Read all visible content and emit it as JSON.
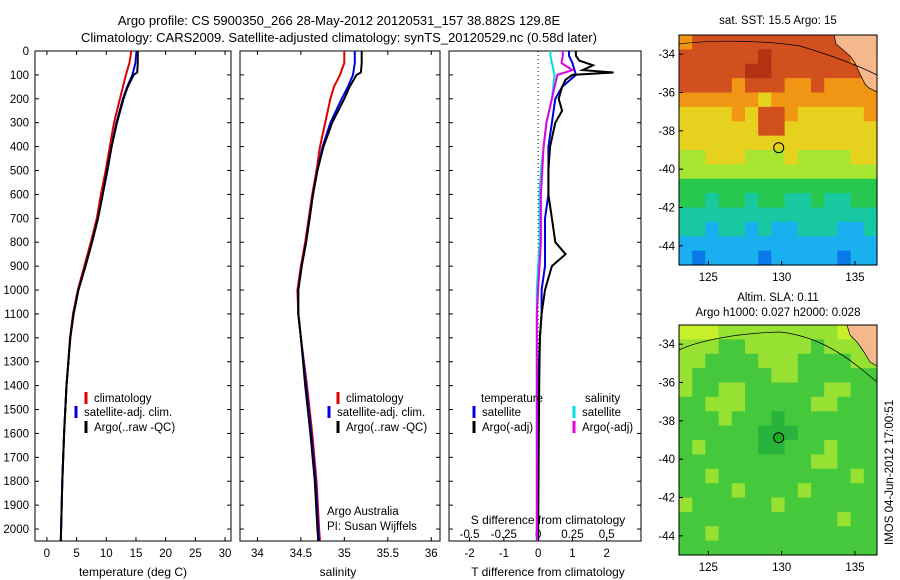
{
  "title_line1": "Argo profile: CS 5900350_266 28-May-2012 20120531_157 38.882S 129.8E",
  "title_line2": "Climatology: CARS2009. Satellite-adjusted climatology: synTS_20120529.nc (0.58d later)",
  "credit_line1": "Argo Australia",
  "credit_line2": "PI: Susan Wijffels",
  "stamp": "IMOS 04-Jun-2012 17:00:51",
  "colors": {
    "climatology": "#e00000",
    "satellite": "#0000e0",
    "argo": "#000000",
    "salinity_satellite": "#00e0e0",
    "salinity_argo": "#e000e0"
  },
  "chart_data": [
    {
      "type": "line",
      "xlabel": "temperature (deg C)",
      "ylabel": "",
      "xlim": [
        -2,
        31
      ],
      "ylim": [
        2050,
        0
      ],
      "xticks": [
        "0",
        "5",
        "10",
        "15",
        "20",
        "25",
        "30"
      ],
      "yticks": [
        "0",
        "100",
        "200",
        "300",
        "400",
        "500",
        "600",
        "700",
        "800",
        "900",
        "1000",
        "1100",
        "1200",
        "1300",
        "1400",
        "1500",
        "1600",
        "1700",
        "1800",
        "1900",
        "2000"
      ],
      "legend": [
        "climatology",
        "satellite-adj. clim.",
        "Argo(..raw -QC)"
      ],
      "legend_position": "lower-center",
      "series": [
        {
          "name": "climatology",
          "y": [
            0,
            20,
            50,
            100,
            150,
            200,
            300,
            400,
            500,
            600,
            700,
            800,
            900,
            1000,
            1100,
            1200,
            1400,
            1600,
            1800,
            2000,
            2050
          ],
          "x": [
            14.2,
            14.1,
            13.9,
            13.3,
            12.8,
            12.3,
            11.3,
            10.6,
            9.9,
            9.1,
            8.4,
            7.4,
            6.3,
            5.2,
            4.4,
            3.9,
            3.3,
            2.9,
            2.6,
            2.4,
            2.35
          ]
        },
        {
          "name": "satellite-adj. clim.",
          "y": [
            0,
            20,
            50,
            100,
            150,
            200,
            300,
            400,
            500,
            600,
            700,
            800,
            900,
            1000,
            1100,
            1200,
            1400,
            1600,
            1800,
            2000,
            2050
          ],
          "x": [
            15.1,
            15.0,
            14.9,
            14.4,
            13.5,
            12.8,
            11.7,
            10.9,
            10.2,
            9.4,
            8.6,
            7.6,
            6.5,
            5.3,
            4.5,
            3.95,
            3.3,
            2.9,
            2.6,
            2.4,
            2.35
          ]
        },
        {
          "name": "Argo(..raw -QC)",
          "y": [
            0,
            20,
            50,
            90,
            100,
            150,
            200,
            300,
            400,
            500,
            600,
            700,
            800,
            900,
            1000,
            1100,
            1200,
            1400,
            1600,
            1800,
            2000,
            2050
          ],
          "x": [
            15.3,
            15.3,
            15.3,
            15.2,
            14.6,
            13.6,
            12.9,
            11.8,
            10.9,
            10.1,
            9.4,
            8.6,
            7.6,
            6.5,
            5.3,
            4.5,
            3.95,
            3.3,
            2.9,
            2.6,
            2.4,
            2.35
          ]
        }
      ]
    },
    {
      "type": "line",
      "xlabel": "salinity",
      "ylabel": "",
      "xlim": [
        33.8,
        36.1
      ],
      "ylim": [
        2050,
        0
      ],
      "xticks": [
        "34",
        "34.5",
        "35",
        "35.5",
        "36"
      ],
      "legend": [
        "climatology",
        "satellite-adj. clim.",
        "Argo(..raw -QC)"
      ],
      "legend_position": "lower-center",
      "series": [
        {
          "name": "climatology",
          "y": [
            0,
            20,
            50,
            100,
            150,
            200,
            300,
            400,
            500,
            600,
            700,
            800,
            900,
            1000,
            1100,
            1200,
            1400,
            1600,
            1800,
            2000,
            2050
          ],
          "x": [
            35.0,
            35.0,
            35.0,
            34.95,
            34.88,
            34.84,
            34.78,
            34.72,
            34.68,
            34.63,
            34.59,
            34.55,
            34.5,
            34.46,
            34.47,
            34.5,
            34.57,
            34.63,
            34.68,
            34.71,
            34.72
          ]
        },
        {
          "name": "satellite-adj. clim.",
          "y": [
            0,
            20,
            50,
            100,
            150,
            200,
            300,
            400,
            500,
            600,
            700,
            800,
            900,
            1000,
            1100,
            1200,
            1400,
            1600,
            1800,
            2000,
            2050
          ],
          "x": [
            35.12,
            35.12,
            35.12,
            35.1,
            35.04,
            34.97,
            34.84,
            34.75,
            34.69,
            34.64,
            34.6,
            34.56,
            34.51,
            34.47,
            34.47,
            34.5,
            34.56,
            34.62,
            34.67,
            34.7,
            34.71
          ]
        },
        {
          "name": "Argo(..raw -QC)",
          "y": [
            0,
            20,
            50,
            90,
            100,
            150,
            200,
            300,
            400,
            500,
            600,
            700,
            800,
            900,
            1000,
            1100,
            1200,
            1400,
            1600,
            1800,
            2000,
            2050
          ],
          "x": [
            35.2,
            35.2,
            35.2,
            35.19,
            35.14,
            35.06,
            35.0,
            34.86,
            34.76,
            34.69,
            34.64,
            34.6,
            34.56,
            34.51,
            34.47,
            34.47,
            34.5,
            34.55,
            34.61,
            34.66,
            34.69,
            34.7
          ]
        }
      ]
    },
    {
      "type": "line",
      "xlabel": "T difference from climatology",
      "xlabel_top": "S difference from climatology",
      "ylabel": "",
      "xlim": [
        -2.6,
        3.0
      ],
      "ylim": [
        2050,
        0
      ],
      "xticks": [
        "-2",
        "-1",
        "0",
        "1",
        "2"
      ],
      "xticks_top": [
        "-0.5",
        "-0.25",
        "0",
        "0.25",
        "0.5"
      ],
      "legend_titles": [
        "temperature",
        "salinity"
      ],
      "legend": [
        "satellite",
        "Argo(-adj)",
        "satellite",
        "Argo(-adj)"
      ],
      "legend_position": "lower-center",
      "series": [
        {
          "name": "satellite",
          "quantity": "temperature",
          "y": [
            0,
            20,
            50,
            100,
            150,
            200,
            300,
            400,
            500,
            600,
            700,
            800,
            900,
            1000,
            1100,
            1200,
            1400,
            1600,
            1800,
            2000,
            2050
          ],
          "x": [
            0.9,
            0.9,
            1.0,
            1.1,
            0.7,
            0.5,
            0.4,
            0.3,
            0.3,
            0.3,
            0.2,
            0.2,
            0.2,
            0.1,
            0.1,
            0.05,
            0.0,
            0.0,
            0.0,
            0.0,
            0.0
          ]
        },
        {
          "name": "Argo(-adj)",
          "quantity": "temperature",
          "y": [
            0,
            20,
            40,
            60,
            80,
            90,
            100,
            120,
            150,
            200,
            250,
            300,
            400,
            500,
            600,
            700,
            800,
            850,
            900,
            950,
            1000,
            1100,
            1200,
            1400,
            1600,
            1800,
            2000,
            2050
          ],
          "x": [
            1.1,
            1.1,
            1.2,
            1.6,
            1.3,
            2.2,
            1.0,
            0.8,
            0.7,
            0.6,
            0.7,
            0.5,
            0.35,
            0.3,
            0.3,
            0.4,
            0.5,
            0.8,
            0.4,
            0.3,
            0.2,
            0.1,
            0.05,
            0.03,
            0.02,
            0.01,
            0.0,
            0.0
          ]
        },
        {
          "name": "satellite",
          "quantity": "salinity",
          "y": [
            0,
            20,
            50,
            100,
            150,
            200,
            300,
            400,
            500,
            600,
            700,
            800,
            900,
            1000,
            1100,
            1200,
            1400,
            1600,
            1800,
            2000,
            2050
          ],
          "x": [
            0.09,
            0.09,
            0.1,
            0.12,
            0.11,
            0.1,
            0.06,
            0.04,
            0.02,
            0.01,
            0.01,
            0.01,
            0.0,
            -0.01,
            -0.01,
            -0.01,
            -0.01,
            -0.01,
            -0.01,
            -0.01,
            -0.01
          ]
        },
        {
          "name": "Argo(-adj)",
          "quantity": "salinity",
          "y": [
            0,
            20,
            50,
            80,
            100,
            150,
            200,
            300,
            400,
            500,
            600,
            700,
            800,
            900,
            1000,
            1100,
            1200,
            1400,
            1600,
            1800,
            2000,
            2050
          ],
          "x": [
            0.18,
            0.18,
            0.17,
            0.25,
            0.14,
            0.12,
            0.1,
            0.06,
            0.04,
            0.03,
            0.02,
            0.02,
            0.02,
            0.01,
            0.0,
            -0.01,
            -0.01,
            -0.01,
            -0.01,
            -0.01,
            -0.01,
            -0.01
          ]
        }
      ]
    },
    {
      "type": "heatmap",
      "title": "sat. SST: 15.5 Argo: 15",
      "xlim": [
        123,
        136.5
      ],
      "ylim": [
        -45,
        -33
      ],
      "xticks": [
        "125",
        "130",
        "135"
      ],
      "yticks": [
        "-34",
        "-36",
        "-38",
        "-40",
        "-42",
        "-44"
      ],
      "marker": {
        "lon": 129.8,
        "lat": -38.88
      },
      "rows_north_to_south": [
        [
          6,
          7,
          7,
          7,
          7,
          7,
          7,
          7,
          7,
          7,
          7,
          7,
          7,
          7,
          7
        ],
        [
          7,
          7,
          7,
          7,
          7,
          7,
          8,
          7,
          7,
          7,
          7,
          7,
          7,
          6,
          6
        ],
        [
          7,
          7,
          7,
          7,
          7,
          8,
          8,
          7,
          7,
          7,
          7,
          7,
          7,
          7,
          6
        ],
        [
          7,
          7,
          7,
          7,
          6,
          7,
          7,
          7,
          6,
          6,
          7,
          6,
          6,
          6,
          6
        ],
        [
          6,
          6,
          6,
          6,
          6,
          6,
          5,
          6,
          6,
          6,
          6,
          6,
          6,
          6,
          6
        ],
        [
          5,
          5,
          5,
          5,
          6,
          5,
          7,
          7,
          6,
          5,
          5,
          5,
          5,
          5,
          6
        ],
        [
          5,
          5,
          5,
          5,
          5,
          5,
          7,
          7,
          5,
          5,
          5,
          5,
          5,
          5,
          5
        ],
        [
          5,
          5,
          5,
          5,
          5,
          5,
          5,
          5,
          5,
          5,
          5,
          5,
          5,
          5,
          5
        ],
        [
          4,
          4,
          5,
          5,
          5,
          4,
          4,
          4,
          5,
          4,
          4,
          4,
          4,
          5,
          5
        ],
        [
          4,
          4,
          4,
          4,
          4,
          4,
          4,
          4,
          4,
          4,
          4,
          4,
          4,
          4,
          4
        ],
        [
          3,
          3,
          3,
          3,
          3,
          3,
          3,
          3,
          3,
          3,
          3,
          3,
          3,
          3,
          3
        ],
        [
          3,
          3,
          2,
          3,
          3,
          2,
          3,
          3,
          2,
          2,
          3,
          2,
          2,
          3,
          3
        ],
        [
          2,
          2,
          2,
          2,
          2,
          2,
          2,
          2,
          2,
          2,
          2,
          2,
          2,
          2,
          2
        ],
        [
          2,
          2,
          1,
          2,
          2,
          1,
          2,
          1,
          1,
          2,
          2,
          2,
          1,
          1,
          2
        ],
        [
          1,
          1,
          1,
          1,
          1,
          1,
          1,
          1,
          1,
          1,
          1,
          1,
          1,
          1,
          1
        ],
        [
          1,
          0,
          1,
          1,
          1,
          1,
          0,
          1,
          1,
          1,
          1,
          1,
          0,
          1,
          1
        ]
      ]
    },
    {
      "type": "heatmap",
      "title_line1": "Altim. SLA: 0.11",
      "title_line2": "Argo h1000: 0.027 h2000: 0.028",
      "xlim": [
        123,
        136.5
      ],
      "ylim": [
        -45,
        -33
      ],
      "xticks": [
        "125",
        "130",
        "135"
      ],
      "yticks": [
        "-34",
        "-36",
        "-38",
        "-40",
        "-42",
        "-44"
      ],
      "marker": {
        "lon": 129.8,
        "lat": -38.88
      },
      "rows_north_to_south": [
        [
          4,
          4,
          4,
          3,
          3,
          3,
          3,
          3,
          3,
          3,
          3,
          3,
          4,
          3,
          3
        ],
        [
          3,
          3,
          3,
          2,
          2,
          3,
          3,
          3,
          3,
          3,
          2,
          3,
          3,
          3,
          3
        ],
        [
          3,
          3,
          2,
          2,
          2,
          2,
          3,
          3,
          3,
          2,
          2,
          2,
          2,
          3,
          3
        ],
        [
          3,
          2,
          2,
          2,
          2,
          2,
          2,
          3,
          3,
          2,
          2,
          2,
          2,
          2,
          2
        ],
        [
          3,
          2,
          2,
          3,
          3,
          2,
          2,
          2,
          2,
          2,
          2,
          3,
          3,
          2,
          2
        ],
        [
          2,
          2,
          3,
          3,
          3,
          2,
          2,
          2,
          2,
          2,
          3,
          3,
          2,
          2,
          2
        ],
        [
          2,
          2,
          2,
          3,
          2,
          2,
          2,
          1,
          2,
          2,
          2,
          2,
          2,
          2,
          2
        ],
        [
          2,
          2,
          2,
          2,
          2,
          2,
          1,
          1,
          1,
          2,
          2,
          2,
          2,
          2,
          2
        ],
        [
          2,
          3,
          2,
          2,
          2,
          2,
          1,
          1,
          2,
          2,
          2,
          3,
          2,
          2,
          2
        ],
        [
          2,
          2,
          2,
          2,
          2,
          2,
          2,
          2,
          2,
          2,
          3,
          3,
          2,
          2,
          2
        ],
        [
          2,
          2,
          3,
          2,
          2,
          2,
          2,
          2,
          2,
          2,
          2,
          2,
          2,
          3,
          2
        ],
        [
          2,
          2,
          2,
          2,
          3,
          2,
          2,
          2,
          2,
          3,
          2,
          2,
          2,
          2,
          2
        ],
        [
          3,
          2,
          2,
          2,
          2,
          2,
          2,
          3,
          2,
          2,
          2,
          2,
          2,
          2,
          2
        ],
        [
          2,
          2,
          2,
          2,
          2,
          2,
          2,
          2,
          2,
          2,
          2,
          2,
          3,
          2,
          2
        ],
        [
          2,
          2,
          3,
          2,
          2,
          2,
          2,
          2,
          2,
          2,
          2,
          2,
          2,
          2,
          2
        ],
        [
          2,
          2,
          2,
          2,
          2,
          2,
          2,
          2,
          2,
          2,
          2,
          2,
          2,
          2,
          2
        ]
      ]
    }
  ]
}
